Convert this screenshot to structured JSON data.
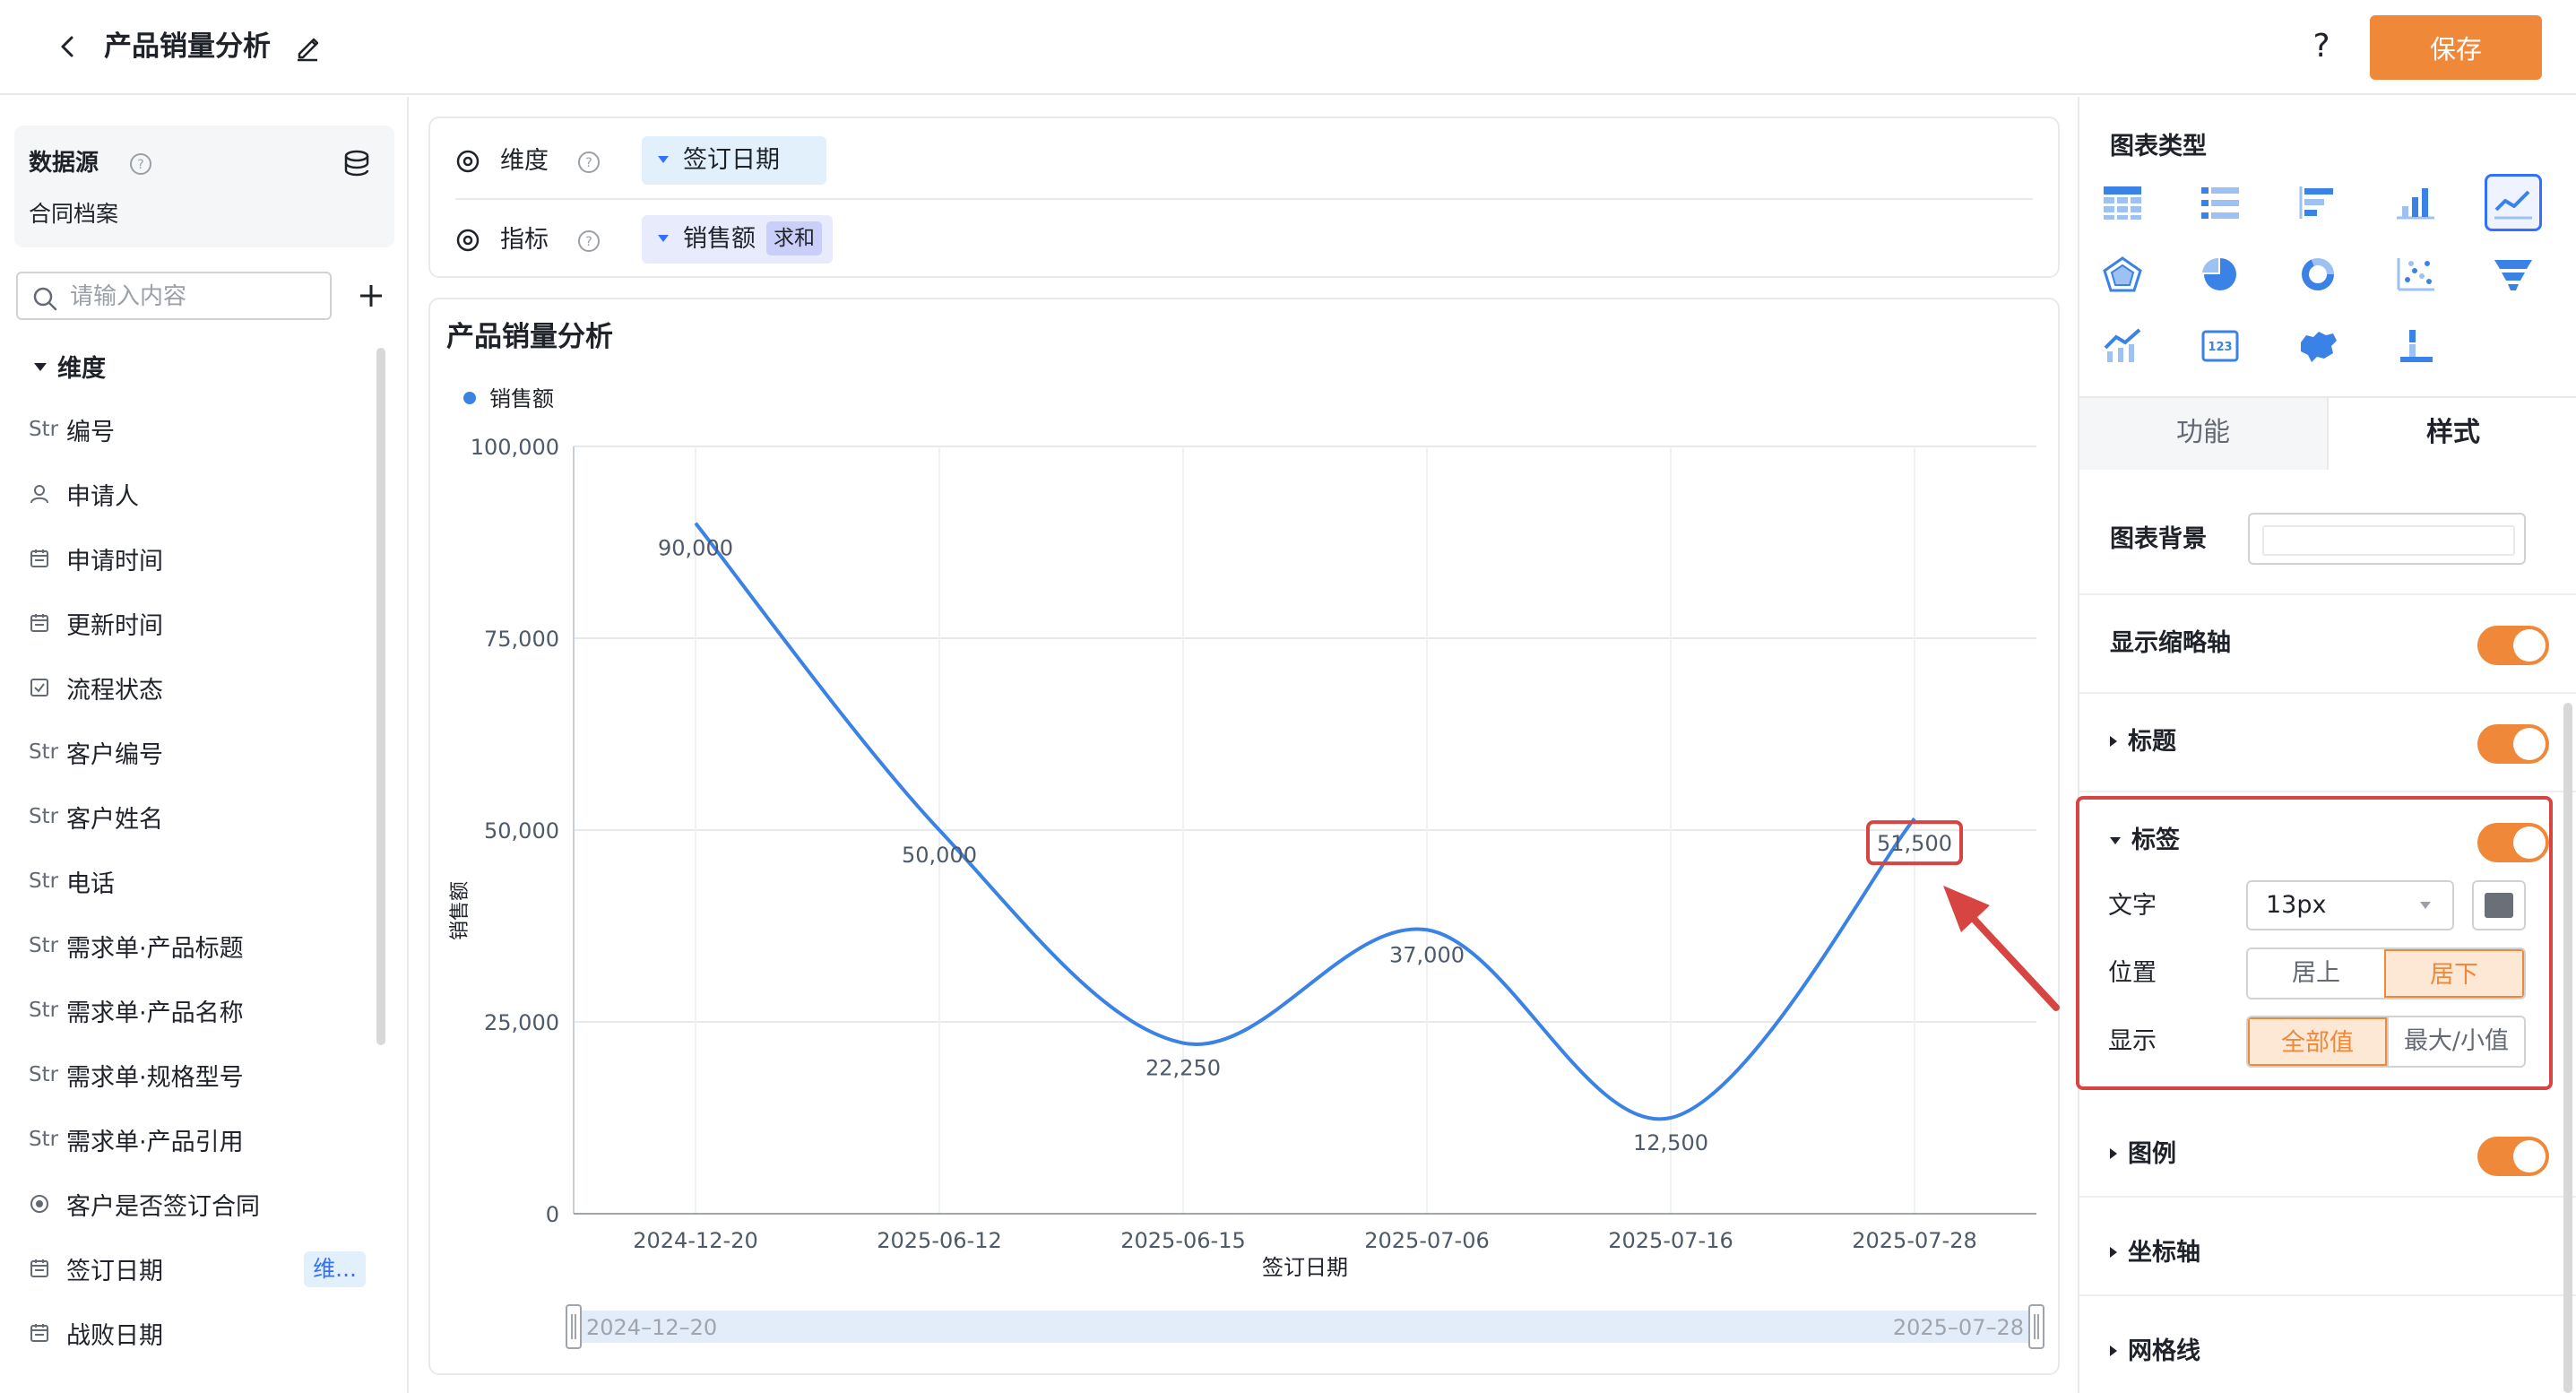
{
  "header": {
    "title": "产品销量分析",
    "help_label": "?",
    "save_label": "保存"
  },
  "left": {
    "datasource_title": "数据源",
    "datasource_name": "合同档案",
    "search_placeholder": "请输入内容",
    "dimension_header": "维度",
    "fields": [
      {
        "type": "Str",
        "label": "编号"
      },
      {
        "type": "user",
        "label": "申请人"
      },
      {
        "type": "date",
        "label": "申请时间"
      },
      {
        "type": "date",
        "label": "更新时间"
      },
      {
        "type": "check",
        "label": "流程状态"
      },
      {
        "type": "Str",
        "label": "客户编号"
      },
      {
        "type": "Str",
        "label": "客户姓名"
      },
      {
        "type": "Str",
        "label": "电话"
      },
      {
        "type": "Str",
        "label": "需求单·产品标题"
      },
      {
        "type": "Str",
        "label": "需求单·产品名称"
      },
      {
        "type": "Str",
        "label": "需求单·规格型号"
      },
      {
        "type": "Str",
        "label": "需求单·产品引用"
      },
      {
        "type": "radio",
        "label": "客户是否签订合同"
      },
      {
        "type": "date",
        "label": "签订日期",
        "badge": "维..."
      },
      {
        "type": "date",
        "label": "战败日期"
      }
    ]
  },
  "config": {
    "dimension_label": "维度",
    "dimension_value": "签订日期",
    "metric_label": "指标",
    "metric_value": "销售额",
    "metric_agg": "求和"
  },
  "chart_data": {
    "type": "line",
    "title": "产品销量分析",
    "xlabel": "签订日期",
    "ylabel": "销售额",
    "categories": [
      "2024-12-20",
      "2025-06-12",
      "2025-06-15",
      "2025-07-06",
      "2025-07-16",
      "2025-07-28"
    ],
    "series": [
      {
        "name": "销售额",
        "values": [
          90000,
          50000,
          22250,
          37000,
          12500,
          51500
        ],
        "labels": [
          "90,000",
          "50,000",
          "22,250",
          "37,000",
          "12,500",
          "51,500"
        ]
      }
    ],
    "ylim": [
      0,
      100000
    ],
    "yticks": [
      0,
      25000,
      50000,
      75000,
      100000
    ],
    "ytick_labels": [
      "0",
      "25,000",
      "50,000",
      "75,000",
      "100,000"
    ],
    "smooth": true,
    "grid": true,
    "legend": "top-left",
    "data_zoom": {
      "start_label": "2024–12–20",
      "end_label": "2025–07–28"
    },
    "highlighted_label": "51,500",
    "line_color": "#3b82e6"
  },
  "right": {
    "chart_type_title": "图表类型",
    "chart_types": [
      "table",
      "detail-table",
      "horizontal-bar",
      "bar",
      "line",
      "radar",
      "pie",
      "donut",
      "scatter",
      "funnel",
      "combo",
      "indicator-card",
      "map",
      "waterfall"
    ],
    "active_chart_type": "line",
    "tab_function": "功能",
    "tab_style": "样式",
    "options": {
      "background": "图表背景",
      "thumbnail_axis": "显示缩略轴",
      "title": "标题",
      "label": "标签",
      "legend": "图例",
      "axis": "坐标轴",
      "gridline": "网格线"
    },
    "label_section": {
      "text_label": "文字",
      "font_size": "13px",
      "position_label": "位置",
      "position_options": [
        "居上",
        "居下"
      ],
      "position_selected": "居下",
      "display_label": "显示",
      "display_options": [
        "全部值",
        "最大/小值"
      ],
      "display_selected": "全部值"
    }
  },
  "colors": {
    "accent": "#f0883a",
    "primary": "#3370ff",
    "highlight": "#d64541"
  }
}
